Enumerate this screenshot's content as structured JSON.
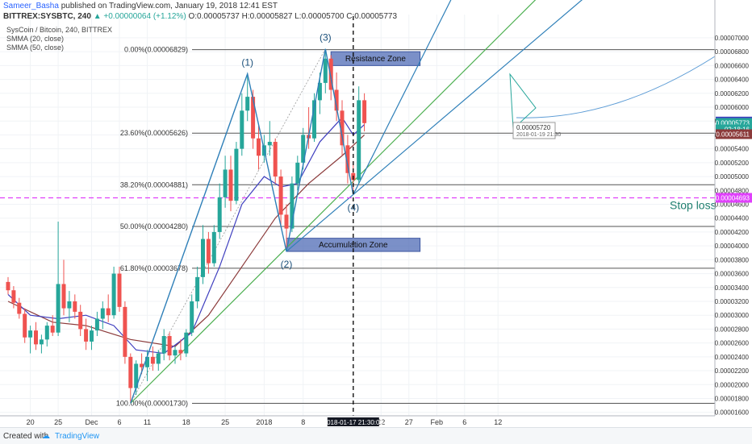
{
  "header": {
    "author": "Sameer_Basha",
    "published": "published on TradingView.com, January 19, 2018 12:41 EST",
    "symbol": "BITTREX:SYSBTC, 240",
    "change": "▲ +0.00000064 (+1.12%)",
    "ohlc": "O:0.00005737 H:0.00005827 L:0.00005700 C:0.00005773"
  },
  "legend": {
    "title": "SysCoin / Bitcoin, 240, BITTREX",
    "sma1": "SMMA (20, close)",
    "sma2": "SMMA (50, close)"
  },
  "footer": {
    "created": "Created with",
    "brand": "TradingView"
  },
  "colors": {
    "up": "#26a69a",
    "down": "#ef5350",
    "pattern": "#2e7fb8",
    "trend": "#4caf50",
    "sma20": "#3f3fbf",
    "sma50": "#8b3a3a",
    "zone": "#4f6bb5",
    "stop": "#e040fb"
  },
  "chart_data": {
    "type": "candlestick",
    "ylim": [
      1.55e-05,
      7.22e-05
    ],
    "y_ticks": [
      "0.00007000",
      "0.00006800",
      "0.00006600",
      "0.00006400",
      "0.00006200",
      "0.00006000",
      "0.00005800",
      "0.00005600",
      "0.00005400",
      "0.00005200",
      "0.00005000",
      "0.00004800",
      "0.00004600",
      "0.00004400",
      "0.00004200",
      "0.00004000",
      "0.00003800",
      "0.00003600",
      "0.00003400",
      "0.00003200",
      "0.00003000",
      "0.00002800",
      "0.00002600",
      "0.00002400",
      "0.00002200",
      "0.00002000",
      "0.00001800",
      "0.00001600"
    ],
    "x_ticks": [
      {
        "label": "20",
        "date": "2017-11-20"
      },
      {
        "label": "25",
        "date": "2017-11-25"
      },
      {
        "label": "Dec",
        "date": "2017-12-01"
      },
      {
        "label": "6",
        "date": "2017-12-06"
      },
      {
        "label": "11",
        "date": "2017-12-11"
      },
      {
        "label": "18",
        "date": "2017-12-18"
      },
      {
        "label": "25",
        "date": "2017-12-25"
      },
      {
        "label": "2018",
        "date": "2018-01-01"
      },
      {
        "label": "8",
        "date": "2018-01-08"
      },
      {
        "label": "22",
        "date": "2018-01-22"
      },
      {
        "label": "27",
        "date": "2018-01-27"
      },
      {
        "label": "Feb",
        "date": "2018-02-01"
      },
      {
        "label": "6",
        "date": "2018-02-06"
      },
      {
        "label": "12",
        "date": "2018-02-12"
      }
    ],
    "fib_levels": [
      {
        "label": "0.00%(0.00006829)",
        "value": 6.829e-05
      },
      {
        "label": "23.60%(0.00005626)",
        "value": 5.626e-05
      },
      {
        "label": "38.20%(0.00004881)",
        "value": 4.881e-05
      },
      {
        "label": "50.00%(0.00004280)",
        "value": 4.28e-05
      },
      {
        "label": "61.80%(0.00003678)",
        "value": 3.678e-05
      },
      {
        "label": "100.00%(0.00001730)",
        "value": 1.73e-05
      }
    ],
    "pattern_points": [
      {
        "label": "(1)",
        "date": "2017-12-29",
        "value": 6.48e-05
      },
      {
        "label": "(2)",
        "date": "2018-01-05",
        "value": 3.92e-05
      },
      {
        "label": "(3)",
        "date": "2018-01-12",
        "value": 6.84e-05
      },
      {
        "label": "(4)",
        "date": "2018-01-17",
        "value": 4.74e-05
      }
    ],
    "pattern_start": {
      "date": "2017-12-08",
      "value": 1.73e-05
    },
    "zones": [
      {
        "label": "Resistance Zone",
        "value_top": 6.8e-05,
        "value_bottom": 6.6e-05,
        "date_start": "2018-01-13",
        "date_end": "2018-01-29"
      },
      {
        "label": "Accumulation Zone",
        "value_top": 4.11e-05,
        "value_bottom": 3.92e-05,
        "date_start": "2018-01-05",
        "date_end": "2018-01-29"
      }
    ],
    "stop_loss": {
      "label": "Stop loss",
      "value": 4.693e-05
    },
    "price_tags": [
      {
        "label": "0.00005793",
        "value": 5.793e-05,
        "color": "#3f3fbf"
      },
      {
        "label": "0.00005773",
        "value": 5.773e-05,
        "color": "#26a69a"
      },
      {
        "label": "02:18:16",
        "value": 5.68e-05,
        "color": "#26a69a"
      },
      {
        "label": "0.00005611",
        "value": 5.611e-05,
        "color": "#8b3a3a"
      },
      {
        "label": "0.00004693",
        "value": 4.693e-05,
        "color": "#e040fb"
      }
    ],
    "tooltip": {
      "value": "0.00005720",
      "time": "2018-01-19 21:30"
    },
    "cursor_time": "2018-01-17 21:30:00",
    "candles": [
      [
        "2017-11-16",
        3.48,
        3.55,
        3.3,
        3.36
      ],
      [
        "2017-11-17",
        3.36,
        3.42,
        3.1,
        3.18
      ],
      [
        "2017-11-18",
        3.18,
        3.25,
        2.95,
        3.02
      ],
      [
        "2017-11-19",
        3.02,
        3.1,
        2.6,
        2.68
      ],
      [
        "2017-11-20",
        2.68,
        2.85,
        2.45,
        2.78
      ],
      [
        "2017-11-21",
        2.78,
        2.9,
        2.5,
        2.58
      ],
      [
        "2017-11-22",
        2.58,
        2.72,
        2.45,
        2.65
      ],
      [
        "2017-11-23",
        2.65,
        2.9,
        2.55,
        2.85
      ],
      [
        "2017-11-24",
        2.85,
        3.0,
        2.7,
        2.75
      ],
      [
        "2017-11-25",
        2.75,
        4.35,
        2.7,
        3.45
      ],
      [
        "2017-11-26",
        3.45,
        3.8,
        3.0,
        3.1
      ],
      [
        "2017-11-27",
        3.1,
        3.35,
        2.9,
        3.2
      ],
      [
        "2017-11-28",
        3.2,
        3.3,
        2.95,
        3.05
      ],
      [
        "2017-11-29",
        3.05,
        3.15,
        2.7,
        2.8
      ],
      [
        "2017-11-30",
        2.8,
        2.95,
        2.5,
        2.62
      ],
      [
        "2017-12-01",
        2.62,
        2.85,
        2.5,
        2.78
      ],
      [
        "2017-12-02",
        2.78,
        3.05,
        2.7,
        2.95
      ],
      [
        "2017-12-03",
        2.95,
        3.2,
        2.8,
        3.1
      ],
      [
        "2017-12-04",
        3.1,
        3.3,
        2.9,
        3.0
      ],
      [
        "2017-12-05",
        3.0,
        3.7,
        2.95,
        3.6
      ],
      [
        "2017-12-06",
        3.6,
        3.7,
        3.05,
        3.12
      ],
      [
        "2017-12-07",
        3.12,
        3.2,
        2.3,
        2.4
      ],
      [
        "2017-12-08",
        2.4,
        2.45,
        1.73,
        1.95
      ],
      [
        "2017-12-09",
        1.95,
        2.35,
        1.85,
        2.3
      ],
      [
        "2017-12-10",
        2.3,
        2.45,
        2.15,
        2.25
      ],
      [
        "2017-12-11",
        2.25,
        2.5,
        2.05,
        2.4
      ],
      [
        "2017-12-12",
        2.4,
        2.55,
        2.2,
        2.3
      ],
      [
        "2017-12-13",
        2.3,
        2.5,
        2.2,
        2.45
      ],
      [
        "2017-12-14",
        2.45,
        2.8,
        2.35,
        2.7
      ],
      [
        "2017-12-15",
        2.7,
        2.75,
        2.35,
        2.42
      ],
      [
        "2017-12-16",
        2.42,
        2.55,
        2.3,
        2.5
      ],
      [
        "2017-12-17",
        2.5,
        2.65,
        2.35,
        2.45
      ],
      [
        "2017-12-18",
        2.45,
        2.8,
        2.4,
        2.75
      ],
      [
        "2017-12-19",
        2.75,
        3.3,
        2.7,
        3.2
      ],
      [
        "2017-12-20",
        3.2,
        3.7,
        3.1,
        3.55
      ],
      [
        "2017-12-21",
        3.55,
        4.3,
        3.45,
        4.1
      ],
      [
        "2017-12-22",
        4.1,
        4.2,
        3.6,
        3.75
      ],
      [
        "2017-12-23",
        3.75,
        4.3,
        3.7,
        4.2
      ],
      [
        "2017-12-24",
        4.2,
        4.9,
        4.1,
        4.7
      ],
      [
        "2017-12-25",
        4.7,
        5.3,
        4.55,
        5.1
      ],
      [
        "2017-12-26",
        5.1,
        5.3,
        4.5,
        4.65
      ],
      [
        "2017-12-27",
        4.65,
        5.5,
        4.6,
        5.4
      ],
      [
        "2017-12-28",
        5.4,
        6.2,
        5.3,
        5.95
      ],
      [
        "2017-12-29",
        5.95,
        6.48,
        5.8,
        6.15
      ],
      [
        "2017-12-30",
        6.15,
        6.25,
        5.4,
        5.55
      ],
      [
        "2017-12-31",
        5.55,
        5.75,
        5.1,
        5.3
      ],
      [
        "2018-01-01",
        5.3,
        5.6,
        5.2,
        5.45
      ],
      [
        "2018-01-02",
        5.45,
        5.8,
        5.3,
        5.5
      ],
      [
        "2018-01-03",
        5.5,
        5.55,
        4.9,
        5.0
      ],
      [
        "2018-01-04",
        5.0,
        5.1,
        4.3,
        4.45
      ],
      [
        "2018-01-05",
        4.45,
        4.6,
        3.92,
        4.25
      ],
      [
        "2018-01-06",
        4.25,
        5.0,
        4.2,
        4.9
      ],
      [
        "2018-01-07",
        4.9,
        5.3,
        4.8,
        5.2
      ],
      [
        "2018-01-08",
        5.2,
        5.7,
        5.1,
        5.6
      ],
      [
        "2018-01-09",
        5.6,
        6.0,
        5.4,
        5.55
      ],
      [
        "2018-01-10",
        5.55,
        6.2,
        5.5,
        6.1
      ],
      [
        "2018-01-11",
        6.1,
        6.5,
        5.9,
        6.35
      ],
      [
        "2018-01-12",
        6.35,
        6.84,
        6.2,
        6.7
      ],
      [
        "2018-01-13",
        6.7,
        6.75,
        6.1,
        6.25
      ],
      [
        "2018-01-14",
        6.25,
        6.5,
        5.8,
        5.95
      ],
      [
        "2018-01-15",
        5.95,
        6.1,
        5.3,
        5.45
      ],
      [
        "2018-01-16",
        5.45,
        5.6,
        4.9,
        5.05
      ],
      [
        "2018-01-17",
        5.05,
        5.2,
        4.74,
        4.95
      ],
      [
        "2018-01-18",
        4.95,
        6.3,
        4.9,
        6.1
      ],
      [
        "2018-01-19",
        6.1,
        6.2,
        5.65,
        5.77
      ]
    ],
    "sma20": [
      [
        0,
        3.3
      ],
      [
        4,
        3.0
      ],
      [
        9,
        2.95
      ],
      [
        14,
        3.0
      ],
      [
        19,
        2.85
      ],
      [
        23,
        2.5
      ],
      [
        28,
        2.45
      ],
      [
        33,
        2.75
      ],
      [
        38,
        3.7
      ],
      [
        42,
        4.6
      ],
      [
        46,
        5.0
      ],
      [
        49,
        4.85
      ],
      [
        52,
        4.9
      ],
      [
        56,
        5.5
      ],
      [
        60,
        5.85
      ],
      [
        62,
        5.6
      ],
      [
        64,
        5.75
      ]
    ],
    "sma50": [
      [
        0,
        3.2
      ],
      [
        8,
        2.9
      ],
      [
        14,
        2.85
      ],
      [
        22,
        2.65
      ],
      [
        30,
        2.55
      ],
      [
        36,
        3.0
      ],
      [
        42,
        3.7
      ],
      [
        48,
        4.4
      ],
      [
        54,
        4.9
      ],
      [
        60,
        5.3
      ],
      [
        64,
        5.6
      ]
    ]
  }
}
